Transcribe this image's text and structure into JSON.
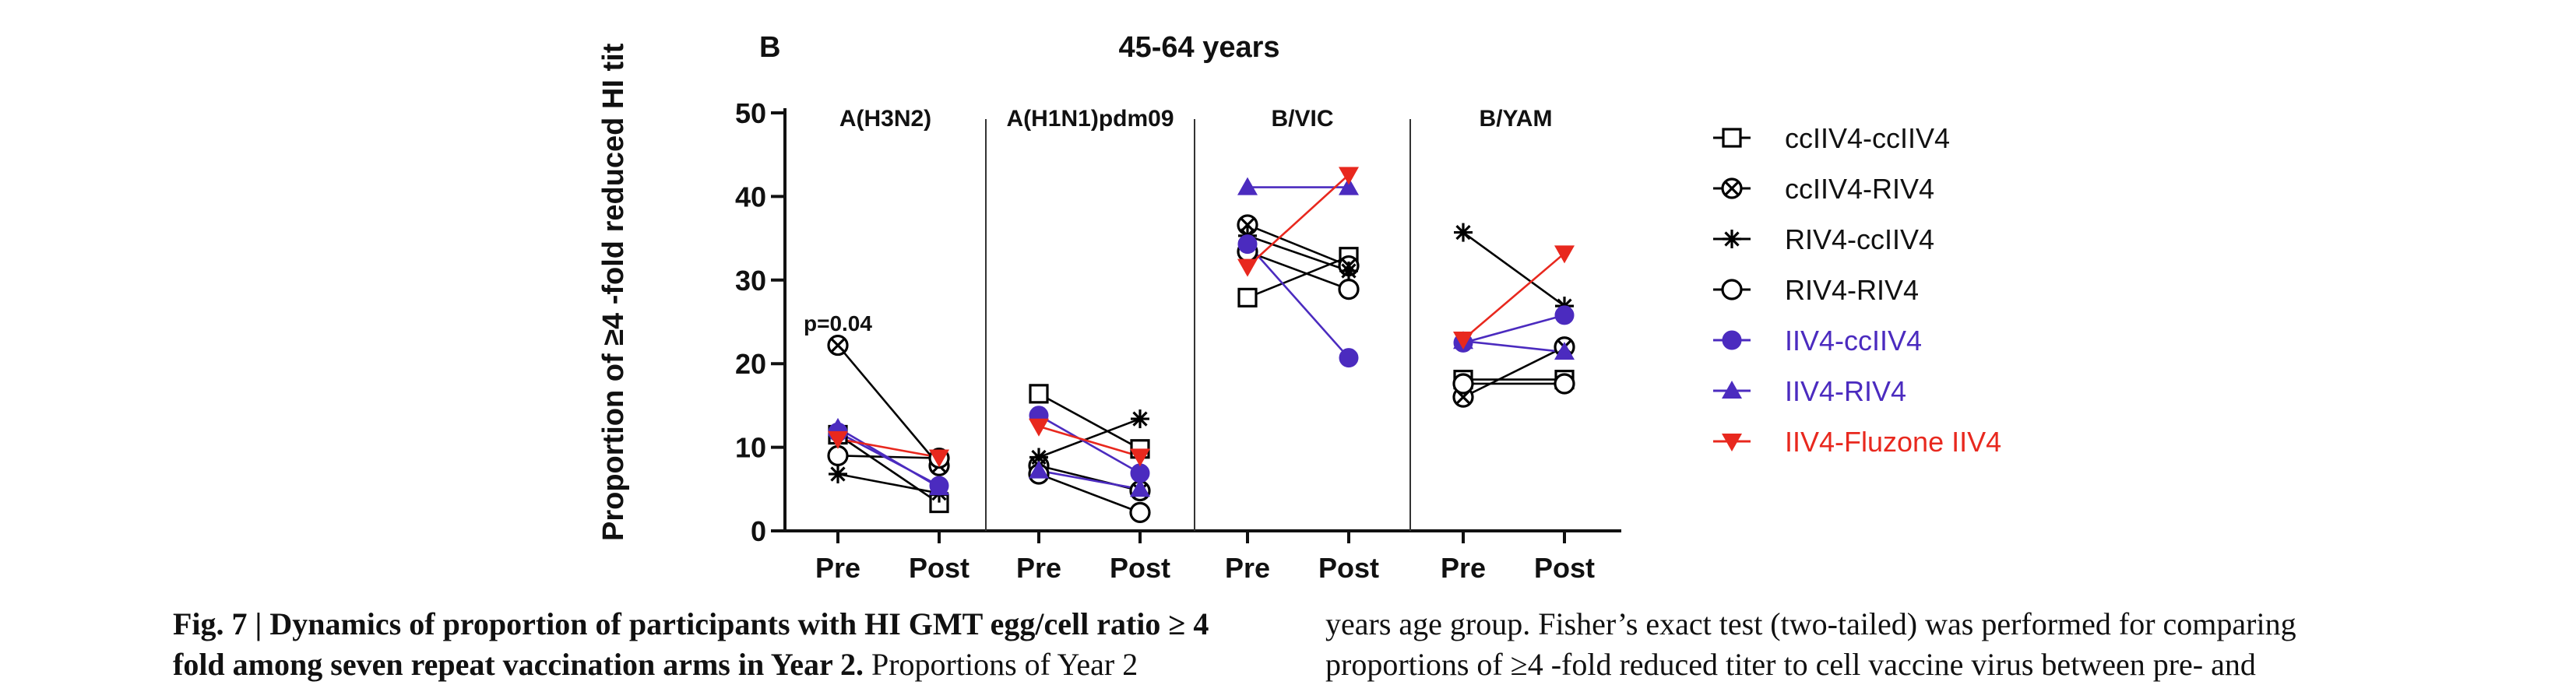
{
  "figure": {
    "panel_letter": "B",
    "panel_title": "45-64 years",
    "y_axis_label": "Proportion of ≥4 -fold reduced HI tit"
  },
  "caption": {
    "left_line1_bold": "Fig. 7 | Dynamics of proportion of participants with HI GMT egg/cell ratio ≥ 4",
    "left_line2_bold": "fold among seven repeat vaccination arms in Year 2.",
    "left_line2_regular": " Proportions of Year 2",
    "right_line1": "years age group. Fisher’s exact test (two-tailed) was performed for comparing",
    "right_line2": "proportions of ≥4 -fold reduced titer to cell vaccine virus between pre- and"
  },
  "chart_data": {
    "type": "line",
    "title": "45-64 years",
    "ylabel": "Proportion of ≥4 -fold reduced HI tit",
    "ylim": [
      0,
      50
    ],
    "yticks": [
      0,
      10,
      20,
      30,
      40,
      50
    ],
    "grid": false,
    "legend_position": "right",
    "annotation": "p=0.04",
    "panels": [
      {
        "name": "A(H3N2)",
        "x": [
          "Pre",
          "Post"
        ],
        "series": [
          {
            "name": "ccIIV4-ccIIV4",
            "values": [
              11.5,
              3.3
            ]
          },
          {
            "name": "ccIIV4-RIV4",
            "values": [
              22.2,
              7.8
            ]
          },
          {
            "name": "RIV4-ccIIV4",
            "values": [
              6.8,
              4.5
            ]
          },
          {
            "name": "RIV4-RIV4",
            "values": [
              9.0,
              8.7
            ]
          },
          {
            "name": "IIV4-ccIIV4",
            "values": [
              11.8,
              5.4
            ]
          },
          {
            "name": "IIV4-RIV4",
            "values": [
              12.3,
              5.2
            ]
          },
          {
            "name": "IIV4-Fluzone IIV4",
            "values": [
              11.0,
              8.8
            ]
          }
        ]
      },
      {
        "name": "A(H1N1)pdm09",
        "x": [
          "Pre",
          "Post"
        ],
        "series": [
          {
            "name": "ccIIV4-ccIIV4",
            "values": [
              16.4,
              9.8
            ]
          },
          {
            "name": "ccIIV4-RIV4",
            "values": [
              7.8,
              4.8
            ]
          },
          {
            "name": "RIV4-ccIIV4",
            "values": [
              8.8,
              13.4
            ]
          },
          {
            "name": "RIV4-RIV4",
            "values": [
              6.8,
              2.2
            ]
          },
          {
            "name": "IIV4-ccIIV4",
            "values": [
              13.8,
              6.9
            ]
          },
          {
            "name": "IIV4-RIV4",
            "values": [
              7.2,
              5.0
            ]
          },
          {
            "name": "IIV4-Fluzone IIV4",
            "values": [
              12.5,
              8.9
            ]
          }
        ]
      },
      {
        "name": "B/VIC",
        "x": [
          "Pre",
          "Post"
        ],
        "series": [
          {
            "name": "ccIIV4-ccIIV4",
            "values": [
              27.9,
              32.8
            ]
          },
          {
            "name": "ccIIV4-RIV4",
            "values": [
              36.6,
              31.7
            ]
          },
          {
            "name": "RIV4-ccIIV4",
            "values": [
              35.3,
              31.1
            ]
          },
          {
            "name": "RIV4-RIV4",
            "values": [
              33.4,
              28.9
            ]
          },
          {
            "name": "IIV4-ccIIV4",
            "values": [
              34.3,
              20.7
            ]
          },
          {
            "name": "IIV4-RIV4",
            "values": [
              41.1,
              41.1
            ]
          },
          {
            "name": "IIV4-Fluzone IIV4",
            "values": [
              31.6,
              42.6
            ]
          }
        ]
      },
      {
        "name": "B/YAM",
        "x": [
          "Pre",
          "Post"
        ],
        "series": [
          {
            "name": "ccIIV4-ccIIV4",
            "values": [
              18.1,
              18.1
            ]
          },
          {
            "name": "ccIIV4-RIV4",
            "values": [
              16.0,
              22.0
            ]
          },
          {
            "name": "RIV4-ccIIV4",
            "values": [
              35.7,
              26.9
            ]
          },
          {
            "name": "RIV4-RIV4",
            "values": [
              17.6,
              17.6
            ]
          },
          {
            "name": "IIV4-ccIIV4",
            "values": [
              22.5,
              25.8
            ]
          },
          {
            "name": "IIV4-RIV4",
            "values": [
              22.7,
              21.4
            ]
          },
          {
            "name": "IIV4-Fluzone IIV4",
            "values": [
              22.9,
              33.2
            ]
          }
        ]
      }
    ],
    "legend": [
      {
        "name": "ccIIV4-ccIIV4",
        "marker": "square-open",
        "color": "#000000"
      },
      {
        "name": "ccIIV4-RIV4",
        "marker": "circle-x",
        "color": "#000000"
      },
      {
        "name": "RIV4-ccIIV4",
        "marker": "asterisk",
        "color": "#000000"
      },
      {
        "name": "RIV4-RIV4",
        "marker": "circle-open",
        "color": "#000000"
      },
      {
        "name": "IIV4-ccIIV4",
        "marker": "circle-filled",
        "color": "#4b2bbf"
      },
      {
        "name": "IIV4-RIV4",
        "marker": "triangle-up-filled",
        "color": "#4b2bbf"
      },
      {
        "name": "IIV4-Fluzone IIV4",
        "marker": "triangle-down-filled",
        "color": "#e8281e"
      }
    ]
  }
}
